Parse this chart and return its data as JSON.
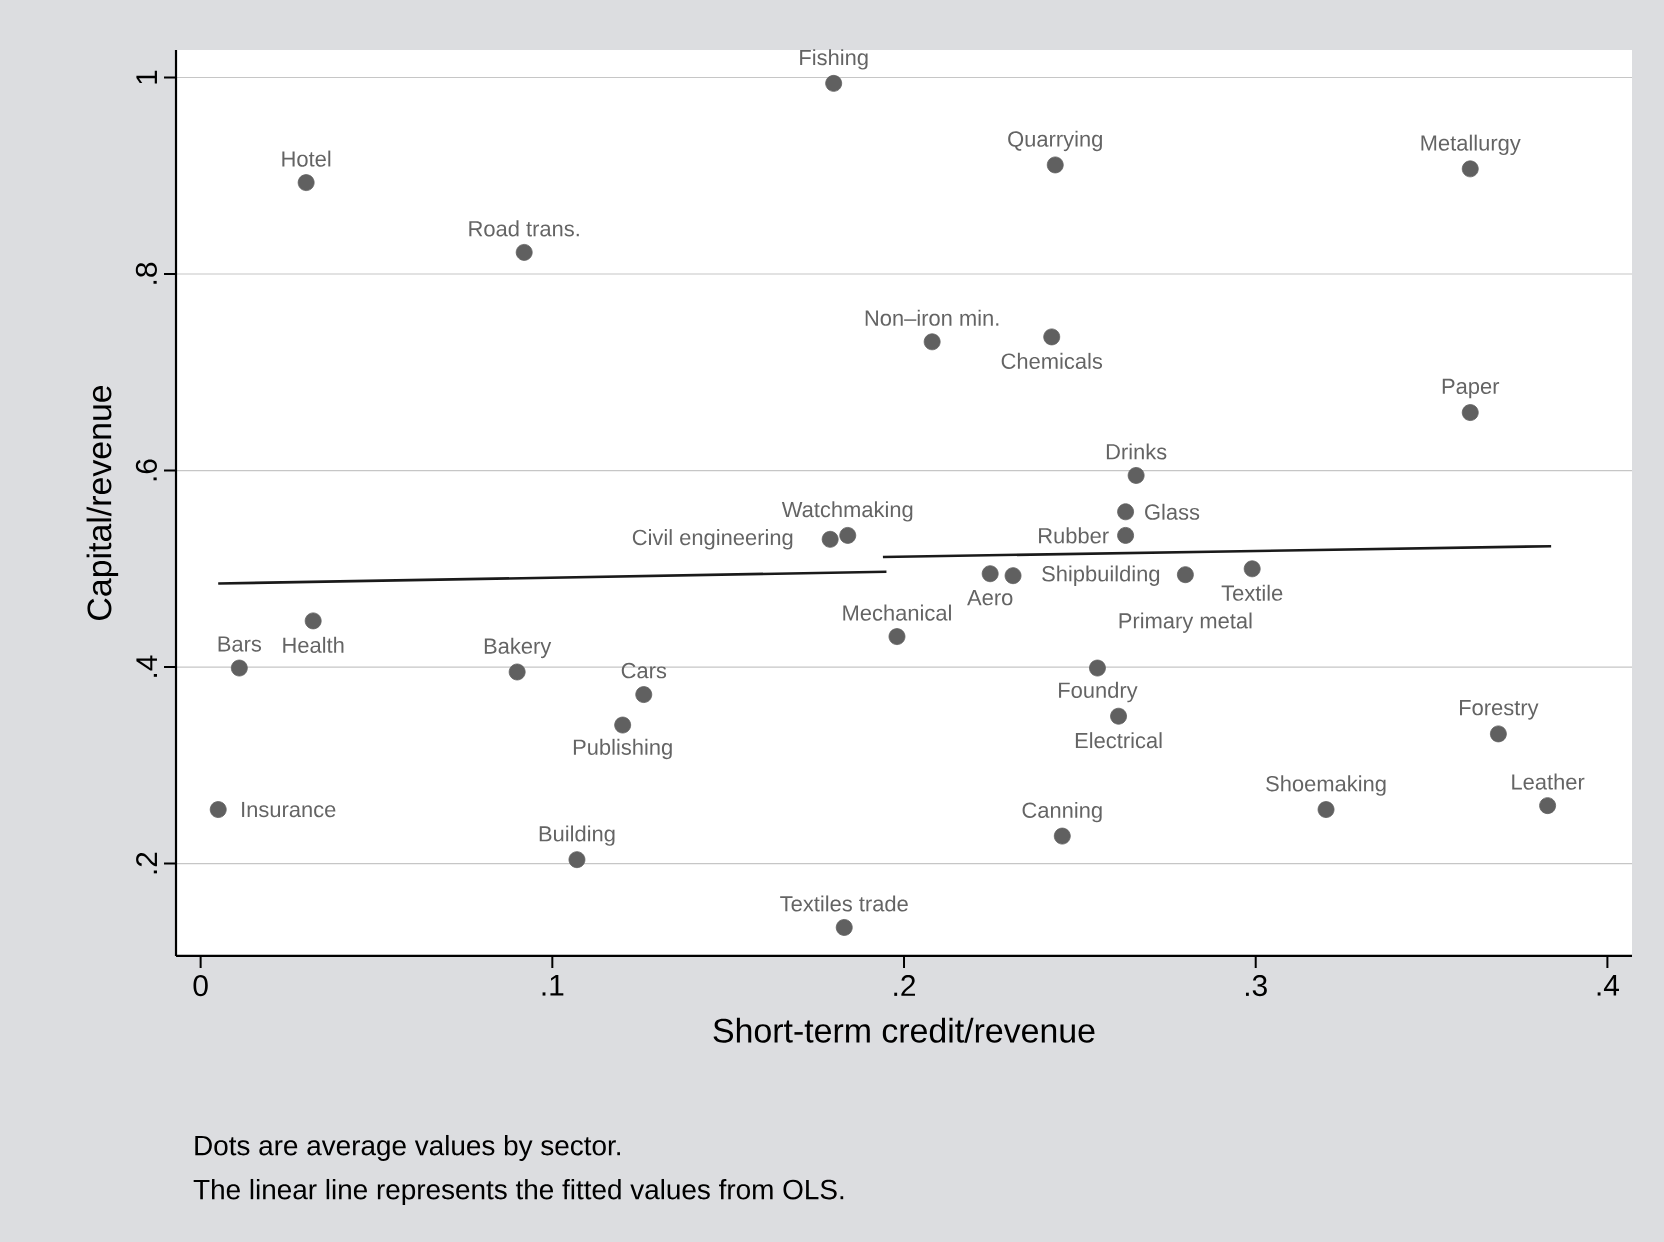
{
  "chart_data": {
    "type": "scatter",
    "xlabel": "Short-term credit/revenue",
    "ylabel": "Capital/revenue",
    "xlim": [
      -0.007,
      0.407
    ],
    "ylim": [
      0.106,
      1.028
    ],
    "xticks": [
      {
        "value": 0,
        "label": "0"
      },
      {
        "value": 0.1,
        "label": ".1"
      },
      {
        "value": 0.2,
        "label": ".2"
      },
      {
        "value": 0.3,
        "label": ".3"
      },
      {
        "value": 0.4,
        "label": ".4"
      }
    ],
    "yticks": [
      {
        "value": 0.2,
        "label": ".2"
      },
      {
        "value": 0.4,
        "label": ".4"
      },
      {
        "value": 0.6,
        "label": ".6"
      },
      {
        "value": 0.8,
        "label": ".8"
      },
      {
        "value": 1,
        "label": "1"
      }
    ],
    "grid": "y",
    "series": [
      {
        "type": "scatter",
        "color": "#606060",
        "marker": "circle",
        "x": [
          0.18,
          0.03,
          0.092,
          0.179,
          0.184,
          0.243,
          0.361,
          0.208,
          0.242,
          0.361,
          0.266,
          0.263,
          0.263,
          0.2245,
          0.231,
          0.28,
          0.299,
          0.032,
          0.011,
          0.09,
          0.126,
          0.12,
          0.005,
          0.107,
          0.183,
          0.198,
          0.255,
          0.261,
          0.369,
          0.32,
          0.383,
          0.245
        ],
        "values": [
          0.994,
          0.893,
          0.822,
          0.53,
          0.534,
          0.911,
          0.907,
          0.731,
          0.736,
          0.659,
          0.595,
          0.558,
          0.534,
          0.495,
          0.493,
          0.494,
          0.5,
          0.447,
          0.399,
          0.395,
          0.372,
          0.341,
          0.255,
          0.204,
          0.135,
          0.431,
          0.399,
          0.35,
          0.332,
          0.255,
          0.259,
          0.228
        ]
      },
      {
        "type": "line",
        "color": "#1a1a1a",
        "marker": "none",
        "line_style": "solid",
        "x": [
          0.005,
          0.195
        ],
        "values": [
          0.485,
          0.497
        ]
      },
      {
        "type": "line",
        "color": "#1a1a1a",
        "marker": "none",
        "line_style": "solid",
        "x": [
          0.194,
          0.384
        ],
        "values": [
          0.512,
          0.523
        ]
      }
    ],
    "annotations": [
      {
        "text": "Fishing",
        "x": 0.18,
        "y": 0.994
      },
      {
        "text": "Hotel",
        "x": 0.03,
        "y": 0.893
      },
      {
        "text": "Road trans.",
        "x": 0.092,
        "y": 0.822
      },
      {
        "text": "Civil engineering",
        "x": 0.179,
        "y": 0.53
      },
      {
        "text": "Watchmaking",
        "x": 0.184,
        "y": 0.534
      },
      {
        "text": "Quarrying",
        "x": 0.243,
        "y": 0.911
      },
      {
        "text": "Metallurgy",
        "x": 0.361,
        "y": 0.907
      },
      {
        "text": "Non–iron min.",
        "x": 0.208,
        "y": 0.731
      },
      {
        "text": "Chemicals",
        "x": 0.242,
        "y": 0.736
      },
      {
        "text": "Paper",
        "x": 0.361,
        "y": 0.659
      },
      {
        "text": "Drinks",
        "x": 0.266,
        "y": 0.595
      },
      {
        "text": "Glass",
        "x": 0.263,
        "y": 0.558
      },
      {
        "text": "Rubber",
        "x": 0.263,
        "y": 0.534
      },
      {
        "text": "Aero",
        "x": 0.2245,
        "y": 0.495
      },
      {
        "text": "Shipbuilding",
        "x": 0.231,
        "y": 0.493
      },
      {
        "text": "Primary metal",
        "x": 0.28,
        "y": 0.494
      },
      {
        "text": "Textile",
        "x": 0.299,
        "y": 0.5
      },
      {
        "text": "Health",
        "x": 0.032,
        "y": 0.447
      },
      {
        "text": "Bars",
        "x": 0.011,
        "y": 0.399
      },
      {
        "text": "Bakery",
        "x": 0.09,
        "y": 0.395
      },
      {
        "text": "Cars",
        "x": 0.126,
        "y": 0.372
      },
      {
        "text": "Publishing",
        "x": 0.12,
        "y": 0.341
      },
      {
        "text": "Insurance",
        "x": 0.005,
        "y": 0.255
      },
      {
        "text": "Building",
        "x": 0.107,
        "y": 0.204
      },
      {
        "text": "Textiles trade",
        "x": 0.183,
        "y": 0.135
      },
      {
        "text": "Mechanical",
        "x": 0.198,
        "y": 0.431
      },
      {
        "text": "Foundry",
        "x": 0.255,
        "y": 0.399
      },
      {
        "text": "Electrical",
        "x": 0.261,
        "y": 0.35
      },
      {
        "text": "Forestry",
        "x": 0.369,
        "y": 0.332
      },
      {
        "text": "Shoemaking",
        "x": 0.32,
        "y": 0.255
      },
      {
        "text": "Leather",
        "x": 0.383,
        "y": 0.259
      },
      {
        "text": "Canning",
        "x": 0.245,
        "y": 0.228
      },
      "Dots are average values by sector.",
      "The linear line represents the fitted values from OLS."
    ]
  }
}
